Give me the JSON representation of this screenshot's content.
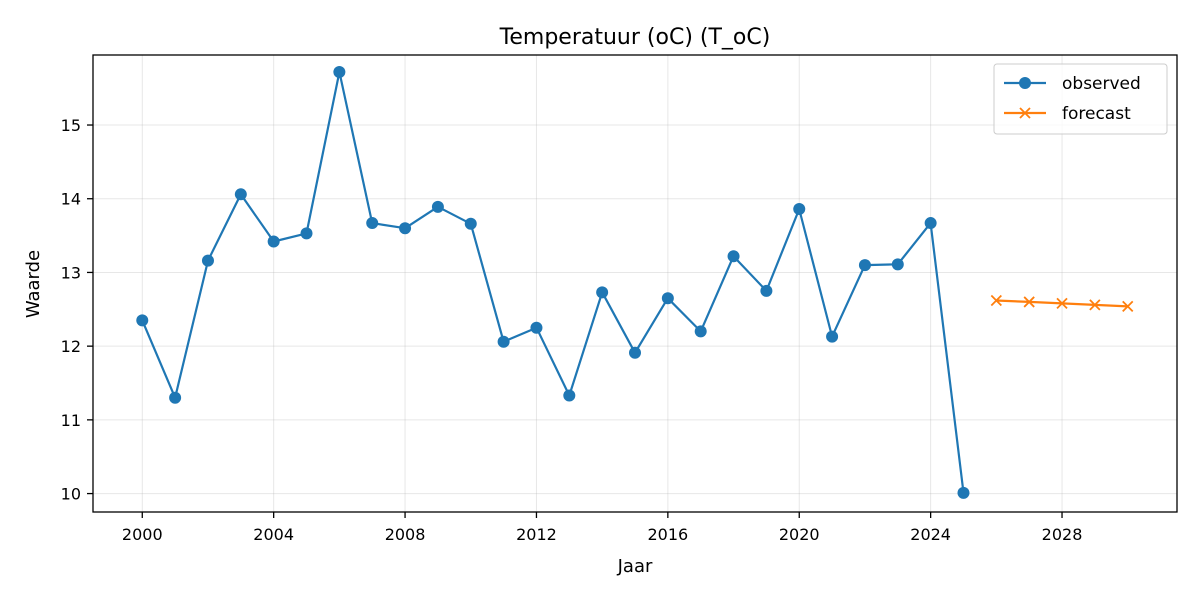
{
  "chart_data": {
    "type": "line",
    "title": "Temperatuur (oC) (T_oC)",
    "xlabel": "Jaar",
    "ylabel": "Waarde",
    "xlim": [
      1998.5,
      2031.5
    ],
    "ylim": [
      9.75,
      15.95
    ],
    "xticks": [
      2000,
      2004,
      2008,
      2012,
      2016,
      2020,
      2024,
      2028
    ],
    "yticks": [
      10,
      11,
      12,
      13,
      14,
      15
    ],
    "grid": true,
    "legend_position": "top-right",
    "series": [
      {
        "name": "observed",
        "color": "#1f77b4",
        "marker": "circle",
        "x": [
          2000,
          2001,
          2002,
          2003,
          2004,
          2005,
          2006,
          2007,
          2008,
          2009,
          2010,
          2011,
          2012,
          2013,
          2014,
          2015,
          2016,
          2017,
          2018,
          2019,
          2020,
          2021,
          2022,
          2023,
          2024,
          2025
        ],
        "y": [
          12.35,
          11.3,
          13.16,
          14.06,
          13.42,
          13.53,
          15.72,
          13.67,
          13.6,
          13.89,
          13.66,
          12.06,
          12.25,
          11.33,
          12.73,
          11.91,
          12.65,
          12.2,
          13.22,
          12.75,
          13.86,
          12.13,
          13.1,
          13.11,
          13.67,
          10.01
        ]
      },
      {
        "name": "forecast",
        "color": "#ff7f0e",
        "marker": "x",
        "x": [
          2026,
          2027,
          2028,
          2029,
          2030
        ],
        "y": [
          12.62,
          12.6,
          12.58,
          12.56,
          12.54
        ]
      }
    ]
  }
}
